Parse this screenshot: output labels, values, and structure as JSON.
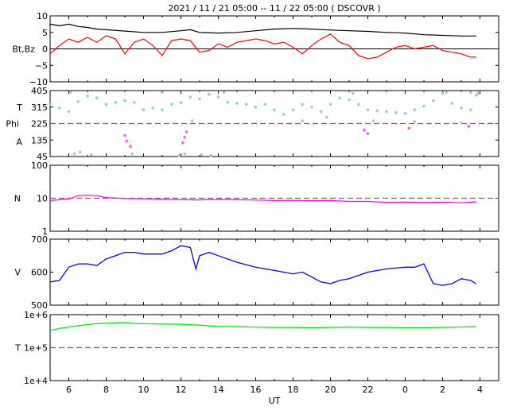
{
  "title": "2021 / 11 / 21   05:00 -- 11 / 22   05:00 ( DSCOVR )",
  "x_axis": {
    "label": "UT",
    "ticks": [
      "6",
      "8",
      "10",
      "12",
      "14",
      "16",
      "18",
      "20",
      "22",
      "0",
      "2",
      "4"
    ],
    "range_hours": [
      5,
      29
    ]
  },
  "colors": {
    "bt": "#000000",
    "bz": "#ff0000",
    "temperature": "#87cefa",
    "temperature_alt": "#c0c0c0",
    "phi": "#c0c0c0",
    "alpha": "#ff55ff",
    "density": "#ff00ff",
    "speed": "#0000ff",
    "total_temperature": "#00ee00",
    "reference_line": "#a05050"
  },
  "chart_data": [
    {
      "type": "line",
      "ylabel": "Bt,Bz",
      "ylim": [
        -10,
        10
      ],
      "yticks": [
        "10",
        "5",
        "0",
        "−5",
        "−10"
      ],
      "series": [
        {
          "name": "Bt",
          "key": "bt",
          "x": [
            5.0,
            5.5,
            6.0,
            6.5,
            7.0,
            7.5,
            8.0,
            9.0,
            10.0,
            11.0,
            12.0,
            12.5,
            13.0,
            14.0,
            15.0,
            16.0,
            17.0,
            18.0,
            19.0,
            20.0,
            21.0,
            22.0,
            23.0,
            24.0,
            25.0,
            26.0,
            27.0,
            27.8
          ],
          "y": [
            7.5,
            7.0,
            7.5,
            6.8,
            6.5,
            6.0,
            5.8,
            5.4,
            5.0,
            5.0,
            5.5,
            5.8,
            5.0,
            4.8,
            5.0,
            5.5,
            6.0,
            6.2,
            6.0,
            5.7,
            5.5,
            5.3,
            5.0,
            4.8,
            4.3,
            4.1,
            3.9,
            3.9
          ]
        },
        {
          "name": "Bz",
          "key": "bz",
          "x": [
            5.0,
            5.5,
            6.0,
            6.5,
            7.0,
            7.5,
            8.0,
            8.5,
            9.0,
            9.5,
            10.0,
            10.5,
            11.0,
            11.5,
            12.0,
            12.5,
            13.0,
            13.5,
            14.0,
            14.5,
            15.0,
            15.5,
            16.0,
            16.5,
            17.0,
            17.5,
            18.0,
            18.5,
            19.0,
            19.5,
            20.0,
            20.5,
            21.0,
            21.5,
            22.0,
            22.5,
            23.0,
            23.5,
            24.0,
            24.5,
            25.0,
            25.5,
            26.0,
            26.5,
            27.0,
            27.5,
            27.8
          ],
          "y": [
            -1.5,
            1.0,
            3.0,
            2.0,
            3.5,
            2.0,
            4.0,
            3.0,
            -1.5,
            2.0,
            3.0,
            1.0,
            -2.0,
            2.5,
            3.0,
            2.5,
            -1.0,
            -0.5,
            1.5,
            0.5,
            2.0,
            2.5,
            3.0,
            2.5,
            1.5,
            2.0,
            0.5,
            -1.5,
            1.0,
            3.0,
            4.5,
            2.0,
            1.0,
            -2.0,
            -3.0,
            -2.5,
            -1.0,
            0.5,
            1.0,
            0.0,
            0.5,
            1.0,
            -0.5,
            -1.0,
            -1.5,
            -2.5,
            -2.5
          ]
        }
      ]
    },
    {
      "type": "scatter",
      "ylabels": [
        "T",
        "Phi",
        "A"
      ],
      "ylim": [
        45,
        405
      ],
      "yticks": [
        "405",
        "315",
        "225",
        "135",
        "45"
      ],
      "reference_line": 225,
      "temperature": {
        "x": [
          5.0,
          5.5,
          6.0,
          6.5,
          7.0,
          7.5,
          8.0,
          8.5,
          9.0,
          9.5,
          10.0,
          10.5,
          11.0,
          11.5,
          12.0,
          12.5,
          13.0,
          13.5,
          14.0,
          14.5,
          15.0,
          15.5,
          16.0,
          16.5,
          17.0,
          17.5,
          18.0,
          18.5,
          19.0,
          19.5,
          20.0,
          20.5,
          21.0,
          21.5,
          22.0,
          22.5,
          23.0,
          23.5,
          24.0,
          24.5,
          25.0,
          25.5,
          26.0,
          26.5,
          27.0,
          27.5,
          27.8
        ],
        "y": [
          330,
          310,
          290,
          345,
          375,
          365,
          330,
          340,
          350,
          340,
          300,
          310,
          300,
          330,
          340,
          370,
          360,
          385,
          370,
          340,
          335,
          330,
          315,
          330,
          300,
          275,
          300,
          330,
          315,
          290,
          330,
          365,
          355,
          330,
          300,
          295,
          290,
          285,
          280,
          300,
          320,
          350,
          390,
          335,
          310,
          300,
          380
        ]
      },
      "phi": {
        "x": [
          6.1,
          6.3,
          6.6,
          7.2,
          9.4,
          11.0,
          11.9,
          12.2,
          12.6,
          13.1,
          13.6,
          14.3,
          18.5,
          19.8,
          21.2,
          22.3,
          24.5,
          26.2,
          27.0,
          27.5,
          27.9
        ],
        "y": [
          395,
          60,
          70,
          55,
          60,
          395,
          50,
          60,
          240,
          55,
          50,
          395,
          240,
          260,
          390,
          240,
          235,
          395,
          230,
          395,
          390
        ]
      },
      "alpha": {
        "x": [
          9.0,
          9.1,
          9.3,
          12.1,
          12.2,
          12.3,
          21.8,
          22.0,
          24.2,
          27.4
        ],
        "y": [
          160,
          130,
          100,
          120,
          150,
          180,
          190,
          170,
          200,
          210
        ]
      }
    },
    {
      "type": "line",
      "ylabel": "N",
      "yscale": "log",
      "ylim": [
        1,
        100
      ],
      "yticks": [
        "100",
        "10",
        "1"
      ],
      "reference_line": 10,
      "series": [
        {
          "name": "N",
          "key": "density",
          "x": [
            5.0,
            6.0,
            6.5,
            7.0,
            7.5,
            8.0,
            9.0,
            10.0,
            11.0,
            12.0,
            13.0,
            14.0,
            15.0,
            16.0,
            17.0,
            18.0,
            19.0,
            20.0,
            21.0,
            22.0,
            23.0,
            24.0,
            25.0,
            26.0,
            27.0,
            27.8
          ],
          "y": [
            8.5,
            9.5,
            12.0,
            12.5,
            12.0,
            10.5,
            9.8,
            9.6,
            9.4,
            9.0,
            8.9,
            9.2,
            9.0,
            8.8,
            8.5,
            8.6,
            8.4,
            8.5,
            8.0,
            8.0,
            7.5,
            7.6,
            7.4,
            7.6,
            7.3,
            7.8
          ]
        }
      ]
    },
    {
      "type": "line",
      "ylabel": "V",
      "ylim": [
        500,
        700
      ],
      "yticks": [
        "700",
        "600",
        "500"
      ],
      "series": [
        {
          "name": "V",
          "key": "speed",
          "x": [
            5.0,
            5.5,
            6.0,
            6.5,
            7.0,
            7.5,
            8.0,
            8.5,
            9.0,
            9.5,
            10.0,
            10.5,
            11.0,
            11.5,
            12.0,
            12.5,
            12.8,
            13.0,
            13.5,
            14.0,
            15.0,
            16.0,
            17.0,
            18.0,
            18.5,
            19.0,
            19.5,
            20.0,
            20.5,
            21.0,
            22.0,
            23.0,
            24.0,
            24.5,
            25.0,
            25.5,
            26.0,
            26.5,
            27.0,
            27.5,
            27.8
          ],
          "y": [
            570,
            575,
            615,
            625,
            625,
            620,
            640,
            650,
            660,
            660,
            655,
            655,
            655,
            665,
            680,
            675,
            610,
            650,
            660,
            650,
            630,
            615,
            605,
            595,
            600,
            585,
            570,
            565,
            575,
            580,
            600,
            610,
            615,
            615,
            625,
            565,
            560,
            565,
            580,
            575,
            565
          ]
        }
      ]
    },
    {
      "type": "line",
      "ylabel": "T",
      "yscale": "log",
      "ylim": [
        10000,
        1000000
      ],
      "yticks": [
        "1e+6",
        "1e+5",
        "1e+4"
      ],
      "reference_line": 100000,
      "series": [
        {
          "name": "T",
          "key": "total_temperature",
          "x": [
            5.0,
            5.5,
            6.0,
            6.5,
            7.0,
            7.5,
            8.0,
            8.5,
            9.0,
            9.5,
            10.0,
            11.0,
            12.0,
            13.0,
            14.0,
            15.0,
            16.0,
            17.0,
            18.0,
            19.0,
            20.0,
            21.0,
            22.0,
            23.0,
            24.0,
            25.0,
            26.0,
            27.0,
            27.8
          ],
          "y": [
            330000,
            380000,
            420000,
            460000,
            500000,
            530000,
            550000,
            560000,
            580000,
            540000,
            530000,
            520000,
            510000,
            480000,
            440000,
            430000,
            420000,
            410000,
            410000,
            400000,
            410000,
            420000,
            410000,
            410000,
            400000,
            400000,
            410000,
            420000,
            430000
          ]
        }
      ]
    }
  ]
}
